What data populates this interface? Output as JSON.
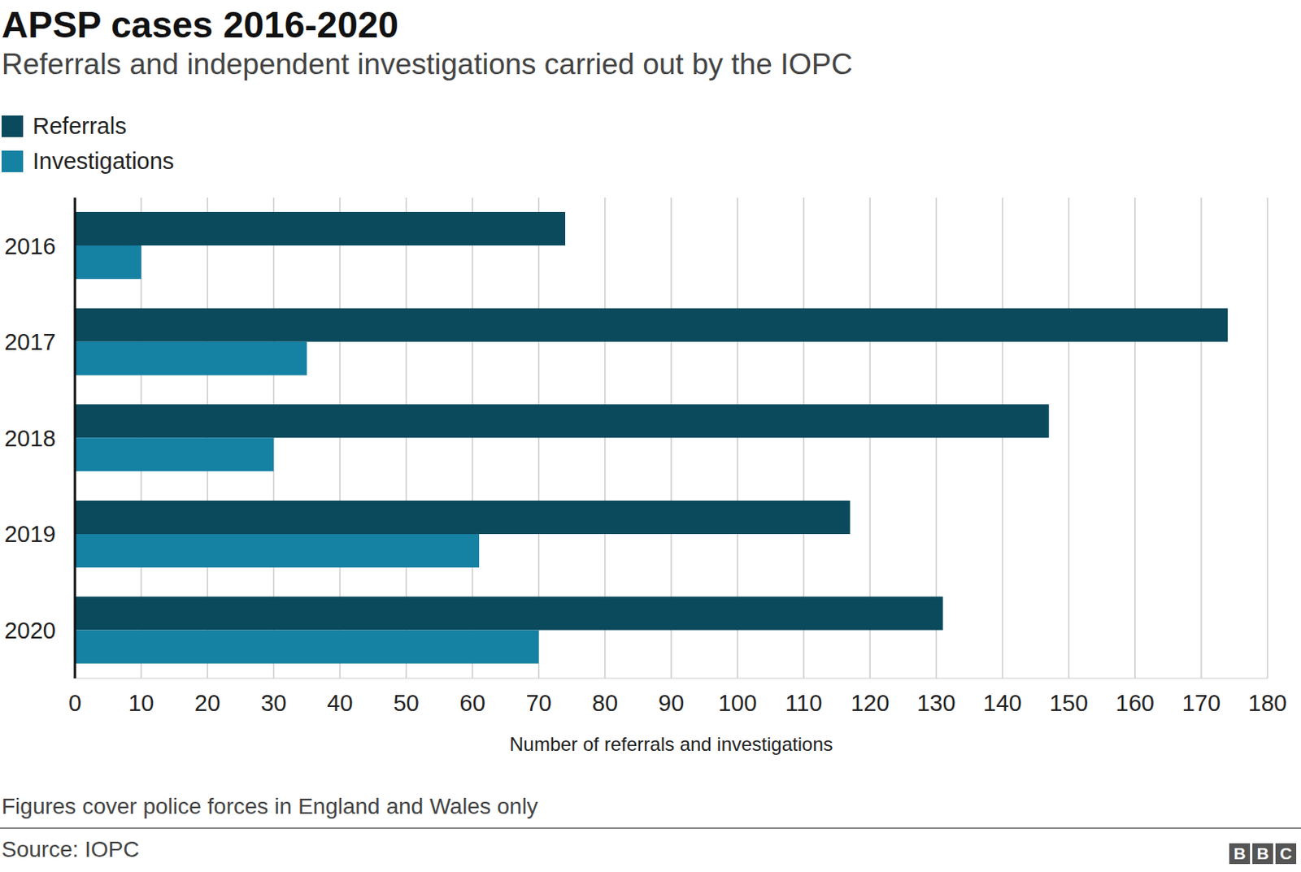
{
  "chart_data": {
    "type": "bar",
    "orientation": "horizontal",
    "title": "APSP cases 2016-2020",
    "subtitle": "Referrals and independent investigations carried out by the IOPC",
    "categories": [
      "2016",
      "2017",
      "2018",
      "2019",
      "2020"
    ],
    "series": [
      {
        "name": "Referrals",
        "color": "#0b4a5d",
        "values": [
          74,
          174,
          147,
          117,
          131
        ]
      },
      {
        "name": "Investigations",
        "color": "#1581a3",
        "values": [
          10,
          35,
          30,
          61,
          70
        ]
      }
    ],
    "x_label": "Number of referrals and investigations",
    "xlim": [
      0,
      180
    ],
    "xticks": [
      0,
      10,
      20,
      30,
      40,
      50,
      60,
      70,
      80,
      90,
      100,
      110,
      120,
      130,
      140,
      150,
      160,
      170,
      180
    ],
    "grid": true,
    "legend": "top-left",
    "note": "Figures cover police forces in England and Wales only",
    "source": "Source: IOPC",
    "logo": "BBC"
  }
}
